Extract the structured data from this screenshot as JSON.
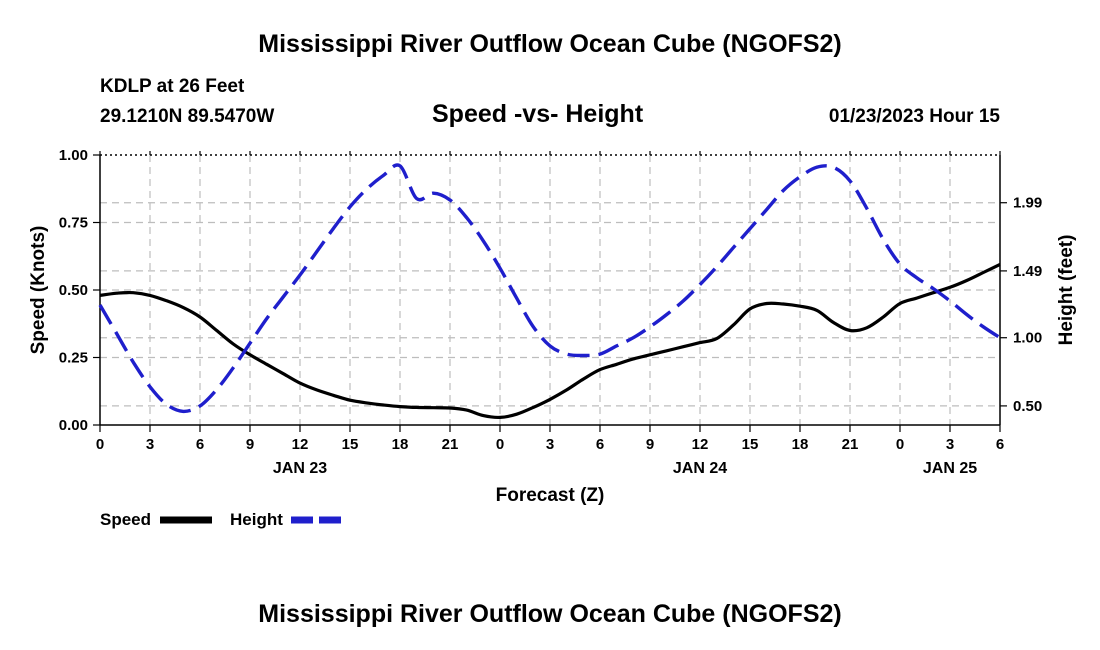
{
  "page": {
    "title_top": "Mississippi River Outflow Ocean Cube (NGOFS2)",
    "title_bottom": "Mississippi River Outflow Ocean Cube (NGOFS2)",
    "station": "KDLP at 26 Feet",
    "coords": "29.1210N  89.5470W",
    "subtitle": "Speed -vs- Height",
    "datetime": "01/23/2023 Hour 15"
  },
  "chart_data": {
    "type": "line",
    "title": "Speed -vs- Height",
    "xlabel": "Forecast (Z)",
    "ylabel": "Speed (Knots)",
    "y2label": "Height (feet)",
    "xlim": [
      0,
      54
    ],
    "ylim": [
      0,
      1
    ],
    "y2lim": [
      0.36,
      2.34
    ],
    "grid": true,
    "x_ticks": [
      0,
      3,
      6,
      9,
      12,
      15,
      18,
      21,
      24,
      27,
      30,
      33,
      36,
      39,
      42,
      45,
      48,
      51,
      54
    ],
    "x_tick_labels": [
      "0",
      "3",
      "6",
      "9",
      "12",
      "15",
      "18",
      "21",
      "0",
      "3",
      "6",
      "9",
      "12",
      "15",
      "18",
      "21",
      "0",
      "3",
      "6"
    ],
    "date_labels": [
      {
        "x": 12,
        "label": "JAN 23"
      },
      {
        "x": 36,
        "label": "JAN 24"
      },
      {
        "x": 51,
        "label": "JAN 25"
      }
    ],
    "y_ticks": [
      0.0,
      0.25,
      0.5,
      0.75,
      1.0
    ],
    "y_tick_labels": [
      "0.00",
      "0.25",
      "0.50",
      "0.75",
      "1.00"
    ],
    "y2_ticks": [
      0.5,
      1.0,
      1.49,
      1.99
    ],
    "y2_tick_labels": [
      "0.50",
      "1.00",
      "1.49",
      "1.99"
    ],
    "legend": {
      "position": "bottom-left",
      "entries": [
        "Speed",
        "Height"
      ]
    },
    "series": [
      {
        "name": "Speed",
        "axis": "left",
        "color": "#000000",
        "style": "solid",
        "x": [
          0,
          1,
          2,
          3,
          4,
          5,
          6,
          7,
          8,
          9,
          10,
          11,
          12,
          13,
          14,
          15,
          16,
          17,
          18,
          19,
          20,
          21,
          22,
          23,
          24,
          25,
          26,
          27,
          28,
          29,
          30,
          31,
          32,
          33,
          34,
          35,
          36,
          37,
          38,
          39,
          40,
          41,
          42,
          43,
          44,
          45,
          46,
          47,
          48,
          49,
          50,
          51,
          52,
          53,
          54
        ],
        "values": [
          0.48,
          0.488,
          0.49,
          0.48,
          0.46,
          0.435,
          0.4,
          0.35,
          0.3,
          0.26,
          0.225,
          0.19,
          0.155,
          0.13,
          0.11,
          0.092,
          0.082,
          0.074,
          0.068,
          0.065,
          0.064,
          0.063,
          0.055,
          0.035,
          0.028,
          0.04,
          0.065,
          0.095,
          0.13,
          0.17,
          0.205,
          0.225,
          0.245,
          0.26,
          0.275,
          0.29,
          0.305,
          0.32,
          0.37,
          0.43,
          0.45,
          0.448,
          0.44,
          0.425,
          0.38,
          0.35,
          0.36,
          0.4,
          0.45,
          0.47,
          0.49,
          0.51,
          0.535,
          0.565,
          0.595
        ]
      },
      {
        "name": "Height",
        "axis": "right",
        "color": "#1f1fcc",
        "style": "dashed",
        "x": [
          0,
          1,
          2,
          3,
          4,
          5,
          6,
          7,
          8,
          9,
          10,
          11,
          12,
          13,
          14,
          15,
          16,
          17,
          18,
          19,
          20,
          21,
          22,
          23,
          24,
          25,
          26,
          27,
          28,
          29,
          30,
          31,
          32,
          33,
          34,
          35,
          36,
          37,
          38,
          39,
          40,
          41,
          42,
          43,
          44,
          45,
          46,
          47,
          48,
          49,
          50,
          51,
          52,
          53,
          54
        ],
        "values": [
          1.24,
          1.03,
          0.82,
          0.64,
          0.51,
          0.46,
          0.5,
          0.62,
          0.78,
          0.96,
          1.14,
          1.3,
          1.46,
          1.63,
          1.8,
          1.96,
          2.09,
          2.19,
          2.26,
          2.02,
          2.06,
          2.01,
          1.88,
          1.71,
          1.51,
          1.29,
          1.08,
          0.94,
          0.88,
          0.87,
          0.88,
          0.94,
          1.0,
          1.08,
          1.17,
          1.27,
          1.39,
          1.52,
          1.66,
          1.8,
          1.94,
          2.08,
          2.18,
          2.25,
          2.25,
          2.15,
          1.95,
          1.72,
          1.54,
          1.44,
          1.36,
          1.27,
          1.17,
          1.08,
          1.0
        ]
      }
    ]
  }
}
